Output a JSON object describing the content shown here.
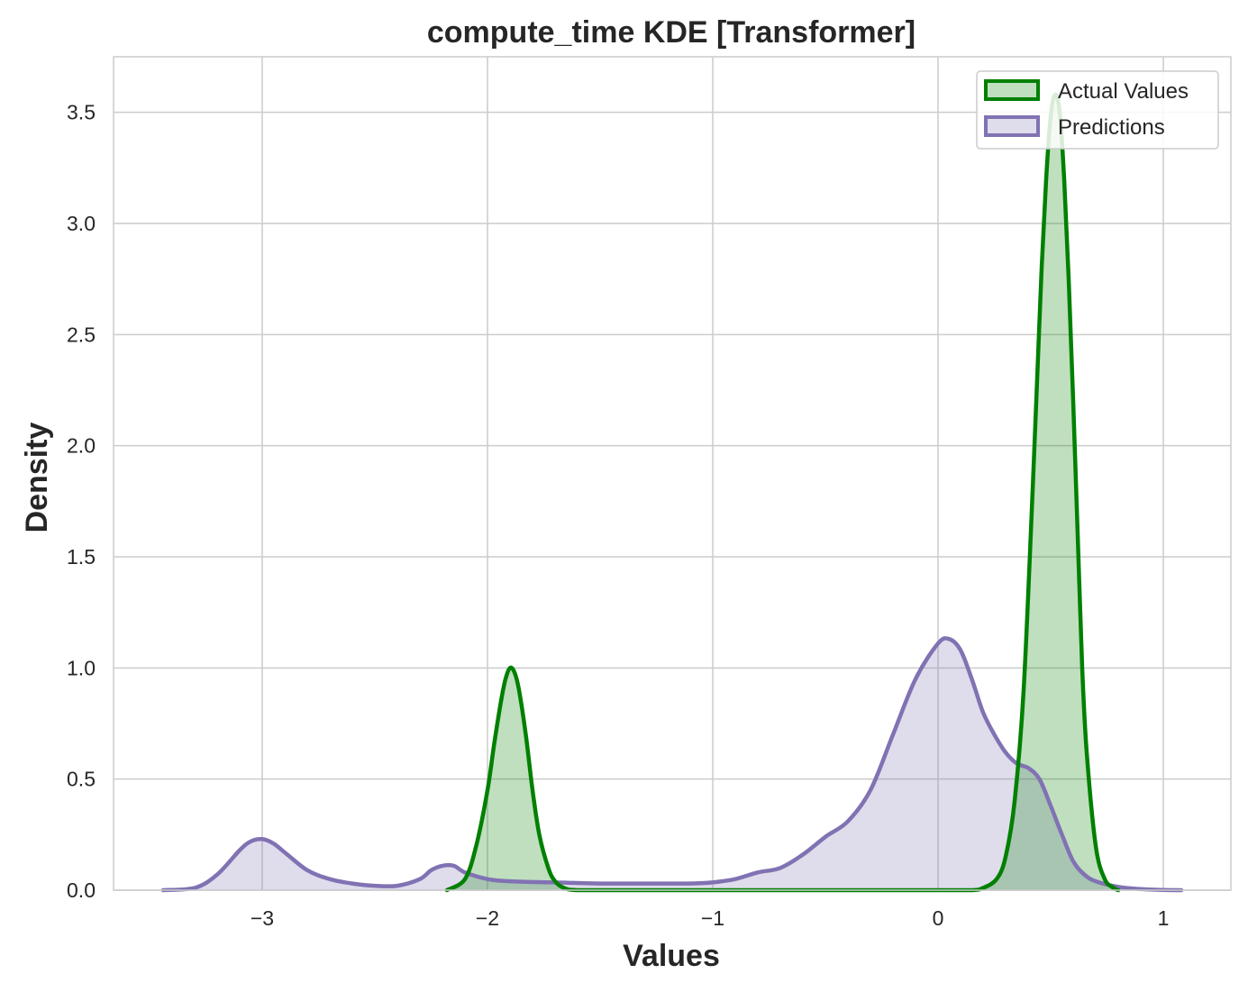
{
  "chart_data": {
    "type": "area",
    "title": "compute_time KDE [Transformer]",
    "xlabel": "Values",
    "ylabel": "Density",
    "xlim": [
      -3.66,
      1.3
    ],
    "ylim": [
      0,
      3.75
    ],
    "xticks": [
      -3,
      -2,
      -1,
      0,
      1
    ],
    "xtick_labels": [
      "−3",
      "−2",
      "−1",
      "0",
      "1"
    ],
    "yticks": [
      0.0,
      0.5,
      1.0,
      1.5,
      2.0,
      2.5,
      3.0,
      3.5
    ],
    "ytick_labels": [
      "0.0",
      "0.5",
      "1.0",
      "1.5",
      "2.0",
      "2.5",
      "3.0",
      "3.5"
    ],
    "grid": true,
    "legend_position": "top-right",
    "series": [
      {
        "name": "Actual Values",
        "color": "#008000",
        "x": [
          -2.18,
          -2.1,
          -2.05,
          -2.0,
          -1.97,
          -1.94,
          -1.92,
          -1.9,
          -1.88,
          -1.86,
          -1.83,
          -1.8,
          -1.77,
          -1.73,
          -1.7,
          -1.66,
          -1.6,
          -1.4,
          -1.0,
          -0.5,
          0.0,
          0.15,
          0.2,
          0.26,
          0.3,
          0.34,
          0.38,
          0.42,
          0.44,
          0.46,
          0.48,
          0.5,
          0.52,
          0.54,
          0.56,
          0.58,
          0.6,
          0.62,
          0.64,
          0.66,
          0.7,
          0.74,
          0.78,
          0.8
        ],
        "y": [
          0.0,
          0.05,
          0.2,
          0.45,
          0.66,
          0.85,
          0.95,
          1.0,
          0.98,
          0.9,
          0.7,
          0.45,
          0.25,
          0.1,
          0.04,
          0.01,
          0.0,
          0.0,
          0.0,
          0.0,
          0.0,
          0.0,
          0.01,
          0.05,
          0.15,
          0.4,
          0.9,
          1.8,
          2.3,
          2.8,
          3.2,
          3.48,
          3.58,
          3.5,
          3.2,
          2.75,
          2.2,
          1.6,
          1.0,
          0.62,
          0.2,
          0.05,
          0.01,
          0.0
        ]
      },
      {
        "name": "Predictions",
        "color": "#8172b3",
        "x": [
          -3.44,
          -3.3,
          -3.2,
          -3.1,
          -3.05,
          -3.0,
          -2.95,
          -2.9,
          -2.8,
          -2.7,
          -2.6,
          -2.5,
          -2.4,
          -2.3,
          -2.25,
          -2.2,
          -2.15,
          -2.1,
          -2.0,
          -1.9,
          -1.7,
          -1.5,
          -1.3,
          -1.1,
          -1.0,
          -0.9,
          -0.8,
          -0.7,
          -0.6,
          -0.5,
          -0.4,
          -0.3,
          -0.2,
          -0.1,
          0.0,
          0.05,
          0.1,
          0.15,
          0.2,
          0.25,
          0.3,
          0.35,
          0.4,
          0.45,
          0.5,
          0.55,
          0.6,
          0.65,
          0.7,
          0.8,
          0.9,
          1.0,
          1.08
        ],
        "y": [
          0.0,
          0.01,
          0.07,
          0.18,
          0.22,
          0.23,
          0.21,
          0.17,
          0.09,
          0.05,
          0.03,
          0.02,
          0.02,
          0.05,
          0.09,
          0.11,
          0.11,
          0.08,
          0.05,
          0.04,
          0.035,
          0.03,
          0.03,
          0.03,
          0.035,
          0.05,
          0.08,
          0.1,
          0.16,
          0.24,
          0.31,
          0.45,
          0.7,
          0.95,
          1.11,
          1.13,
          1.08,
          0.95,
          0.8,
          0.7,
          0.62,
          0.57,
          0.55,
          0.5,
          0.38,
          0.25,
          0.13,
          0.07,
          0.04,
          0.015,
          0.005,
          0.001,
          0.0
        ]
      }
    ]
  }
}
